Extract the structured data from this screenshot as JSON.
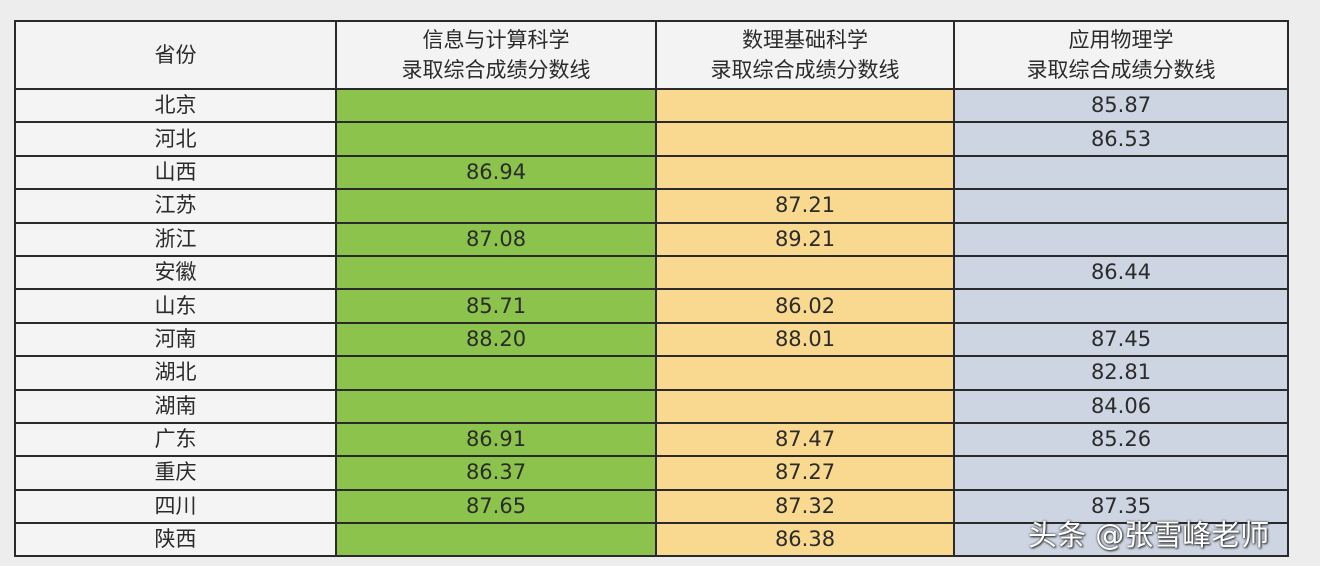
{
  "table": {
    "headers": [
      "省份",
      [
        "信息与计算科学",
        "录取综合成绩分数线"
      ],
      [
        "数理基础科学",
        "录取综合成绩分数线"
      ],
      [
        "应用物理学",
        "录取综合成绩分数线"
      ]
    ],
    "rows": [
      [
        "北京",
        "",
        "",
        "85.87"
      ],
      [
        "河北",
        "",
        "",
        "86.53"
      ],
      [
        "山西",
        "86.94",
        "",
        ""
      ],
      [
        "江苏",
        "",
        "87.21",
        ""
      ],
      [
        "浙江",
        "87.08",
        "89.21",
        ""
      ],
      [
        "安徽",
        "",
        "",
        "86.44"
      ],
      [
        "山东",
        "85.71",
        "86.02",
        ""
      ],
      [
        "河南",
        "88.20",
        "88.01",
        "87.45"
      ],
      [
        "湖北",
        "",
        "",
        "82.81"
      ],
      [
        "湖南",
        "",
        "",
        "84.06"
      ],
      [
        "广东",
        "86.91",
        "87.47",
        "85.26"
      ],
      [
        "重庆",
        "86.37",
        "87.27",
        ""
      ],
      [
        "四川",
        "87.65",
        "87.32",
        "87.35"
      ],
      [
        "陕西",
        "",
        "86.38",
        ""
      ]
    ],
    "column_colors": [
      "#8bc34c",
      "#f8d98f",
      "#cdd5e3"
    ]
  },
  "watermark": "头条 @张雪峰老师"
}
